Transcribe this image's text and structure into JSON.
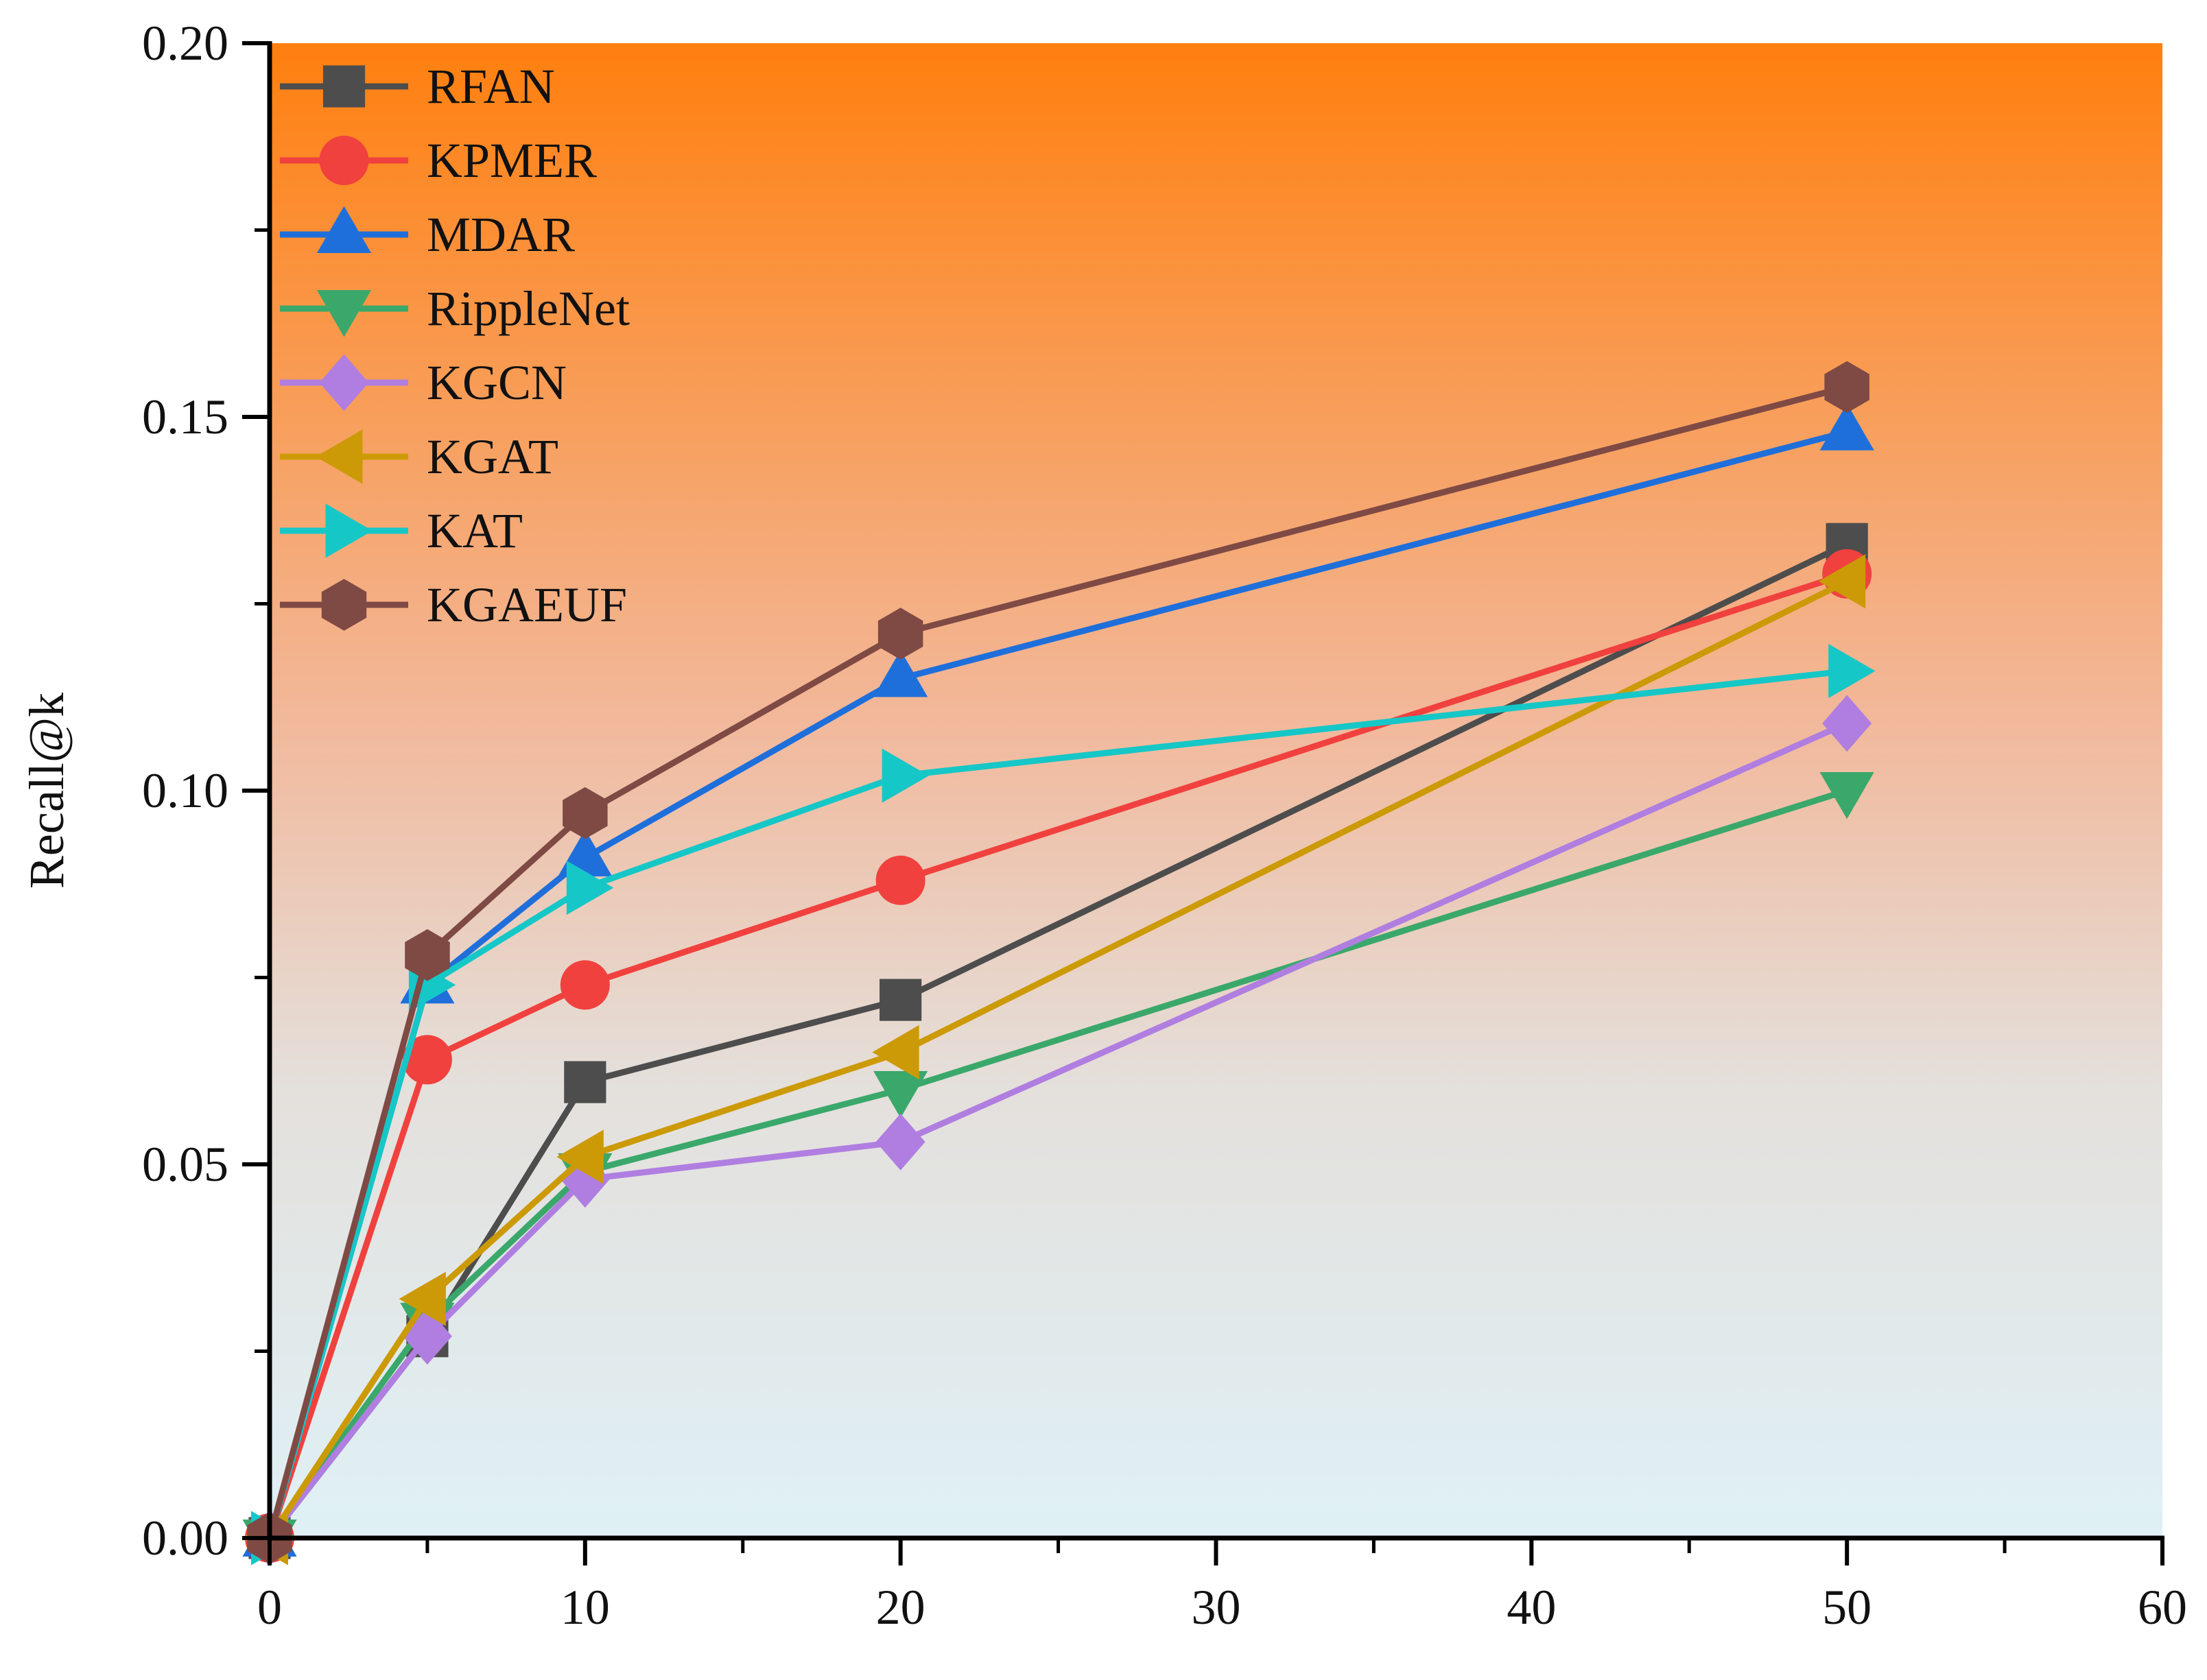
{
  "chart_data": {
    "type": "line",
    "title": "",
    "xlabel": "",
    "ylabel": "Recall@k",
    "xlim": [
      0,
      60
    ],
    "ylim": [
      0,
      0.2
    ],
    "x_ticks": [
      0,
      10,
      20,
      30,
      40,
      50,
      60
    ],
    "y_ticks": [
      0.0,
      0.05,
      0.1,
      0.15,
      0.2
    ],
    "x_tick_labels": [
      "0",
      "10",
      "20",
      "30",
      "40",
      "50",
      "60"
    ],
    "y_tick_labels": [
      "0.00",
      "0.05",
      "0.10",
      "0.15",
      "0.20"
    ],
    "grid": false,
    "legend_position": "top-left",
    "background_gradient": {
      "top": "#ff7f0e",
      "bottom": "#dff1f6"
    },
    "x": [
      0,
      5,
      10,
      20,
      50
    ],
    "series": [
      {
        "name": "RFAN",
        "color": "#4d4d4d",
        "marker": "square",
        "values": [
          0,
          0.027,
          0.061,
          0.072,
          0.133
        ]
      },
      {
        "name": "KPMER",
        "color": "#f0413e",
        "marker": "circle",
        "values": [
          0,
          0.064,
          0.074,
          0.088,
          0.129
        ]
      },
      {
        "name": "MDAR",
        "color": "#1f6fdb",
        "marker": "triangle-up",
        "values": [
          0,
          0.074,
          0.091,
          0.115,
          0.148
        ]
      },
      {
        "name": "RippleNet",
        "color": "#3aa86a",
        "marker": "triangle-down",
        "values": [
          0,
          0.029,
          0.049,
          0.06,
          0.1
        ]
      },
      {
        "name": "KGCN",
        "color": "#b07ee0",
        "marker": "diamond",
        "values": [
          0,
          0.027,
          0.048,
          0.053,
          0.109
        ]
      },
      {
        "name": "KGAT",
        "color": "#cc9a06",
        "marker": "triangle-left",
        "values": [
          0,
          0.032,
          0.051,
          0.065,
          0.128
        ]
      },
      {
        "name": "KAT",
        "color": "#16c7c7",
        "marker": "triangle-right",
        "values": [
          0,
          0.074,
          0.087,
          0.102,
          0.116
        ]
      },
      {
        "name": "KGAEUF",
        "color": "#7f4a44",
        "marker": "hexagon",
        "values": [
          0,
          0.078,
          0.097,
          0.121,
          0.154
        ]
      }
    ]
  }
}
